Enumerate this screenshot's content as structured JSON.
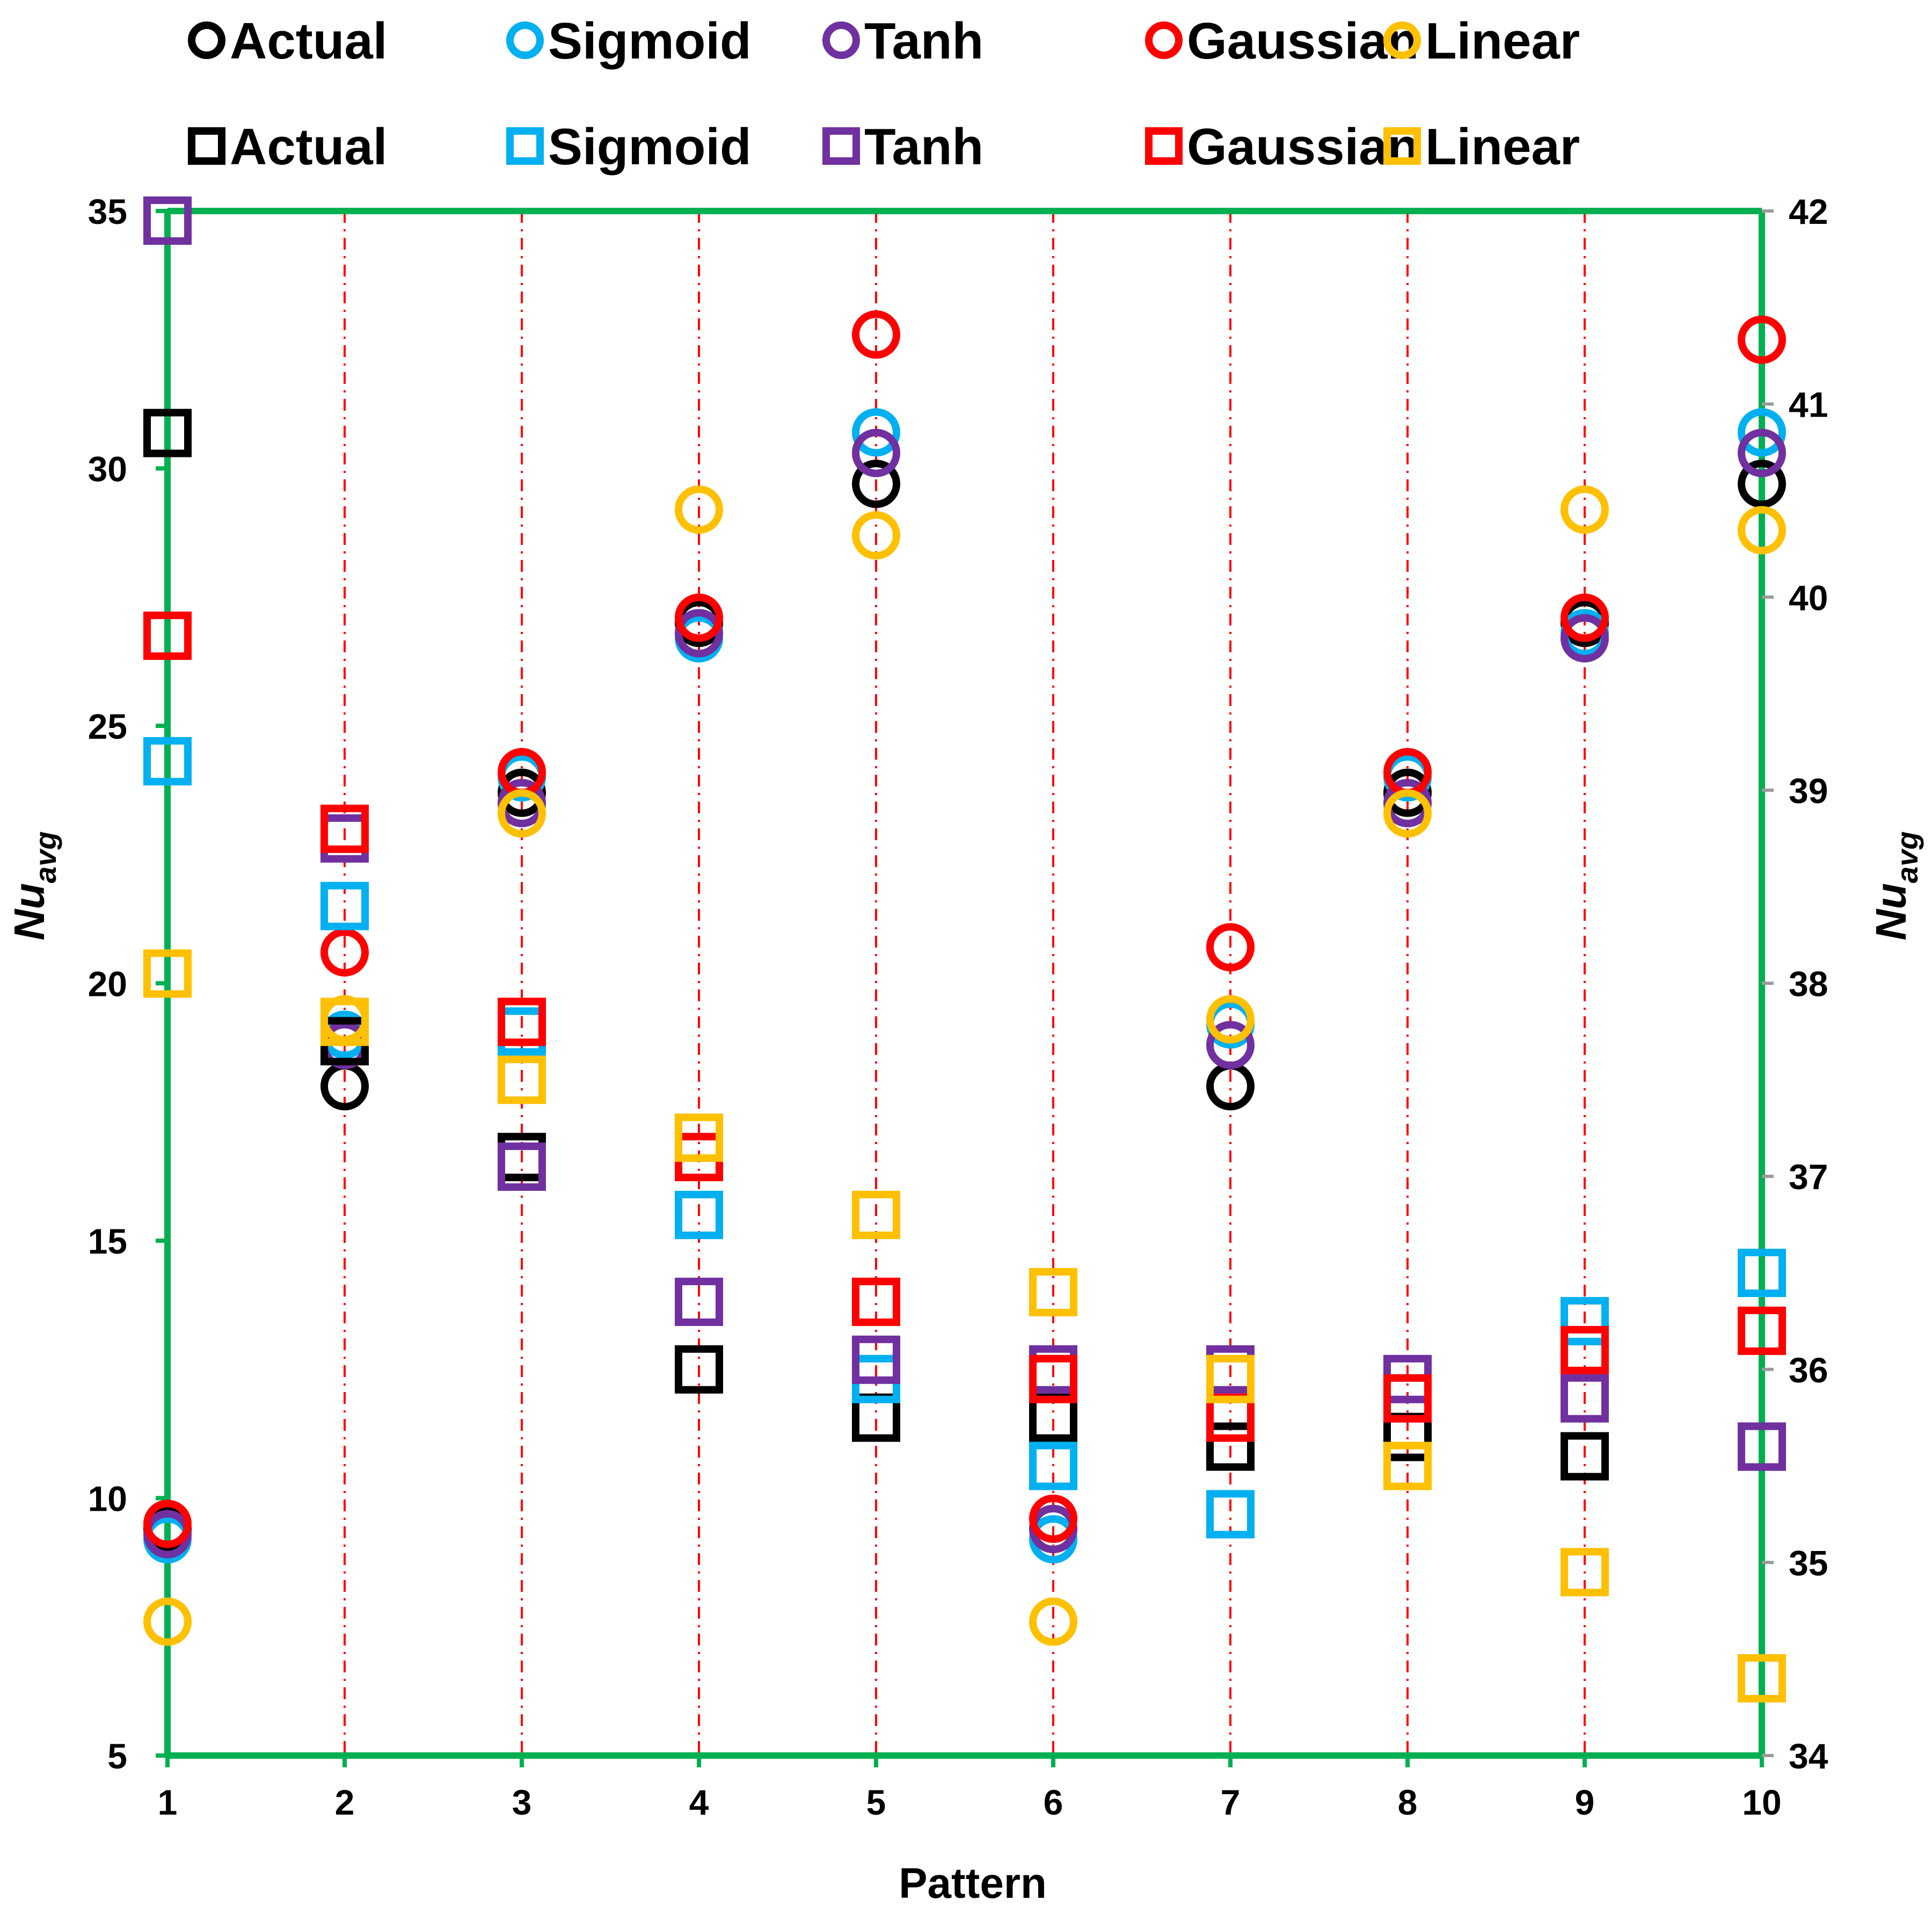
{
  "chart_data": {
    "type": "scatter",
    "title": "",
    "xlabel": "Pattern",
    "ylabel": "Nu",
    "ylabel_sub": "avg",
    "y2label": "Nu",
    "y2label_sub": "avg",
    "x": [
      1,
      2,
      3,
      4,
      5,
      6,
      7,
      8,
      9,
      10
    ],
    "xlim": [
      1,
      10
    ],
    "ylim": [
      5,
      35
    ],
    "y2lim": [
      34,
      42
    ],
    "xticks": [
      "1",
      "2",
      "3",
      "4",
      "5",
      "6",
      "7",
      "8",
      "9",
      "10"
    ],
    "yticks": [
      "5",
      "10",
      "15",
      "20",
      "25",
      "30",
      "35"
    ],
    "y2ticks": [
      "34",
      "35",
      "36",
      "37",
      "38",
      "39",
      "40",
      "41",
      "42"
    ],
    "grid": "vertical dash-dot lines at each pattern",
    "legend_position": "top",
    "colors": {
      "Actual": "#000000",
      "Sigmoid": "#00b0f0",
      "Tanh": "#7030a0",
      "Gaussian": "#ff0000",
      "Linear": "#ffc000",
      "frame": "#00b050",
      "grid": "#ff0000"
    },
    "series": [
      {
        "name": "Actual",
        "marker": "circle",
        "axis": "left",
        "values": [
          9.4,
          18.0,
          23.7,
          27.0,
          29.7,
          9.4,
          18.0,
          23.7,
          27.0,
          29.7
        ]
      },
      {
        "name": "Sigmoid",
        "marker": "circle",
        "axis": "left",
        "values": [
          9.2,
          19.0,
          24.0,
          26.7,
          30.7,
          9.2,
          19.2,
          24.0,
          26.8,
          30.7
        ]
      },
      {
        "name": "Tanh",
        "marker": "circle",
        "axis": "left",
        "values": [
          9.3,
          18.8,
          23.5,
          26.8,
          30.3,
          9.4,
          18.8,
          23.5,
          26.7,
          30.3
        ]
      },
      {
        "name": "Gaussian",
        "marker": "circle",
        "axis": "left",
        "values": [
          9.5,
          20.6,
          24.1,
          27.1,
          32.6,
          9.6,
          20.7,
          24.1,
          27.1,
          32.5
        ]
      },
      {
        "name": "Linear",
        "marker": "circle",
        "axis": "left",
        "values": [
          7.6,
          19.3,
          23.3,
          29.2,
          28.7,
          7.6,
          19.3,
          23.3,
          29.2,
          28.8
        ]
      },
      {
        "name": "Actual",
        "marker": "square",
        "axis": "right",
        "values": [
          40.85,
          37.7,
          37.1,
          36.0,
          35.75,
          35.75,
          35.6,
          35.65,
          35.55,
          35.6
        ]
      },
      {
        "name": "Sigmoid",
        "marker": "square",
        "axis": "right",
        "values": [
          39.15,
          38.4,
          37.75,
          36.8,
          35.95,
          35.5,
          35.25,
          35.85,
          36.25,
          36.5
        ]
      },
      {
        "name": "Tanh",
        "marker": "square",
        "axis": "right",
        "values": [
          41.95,
          38.75,
          37.05,
          36.35,
          36.05,
          36.0,
          36.0,
          35.95,
          35.85,
          35.6
        ]
      },
      {
        "name": "Gaussian",
        "marker": "square",
        "axis": "right",
        "values": [
          39.8,
          38.8,
          37.8,
          37.1,
          36.35,
          35.95,
          35.75,
          35.85,
          36.1,
          36.2
        ]
      },
      {
        "name": "Linear",
        "marker": "square",
        "axis": "right",
        "values": [
          38.05,
          37.8,
          37.5,
          37.2,
          36.8,
          36.4,
          35.95,
          35.5,
          34.95,
          34.4
        ]
      }
    ],
    "legend": {
      "row1": [
        "Actual",
        "Sigmoid",
        "Tanh",
        "Gaussian",
        "Linear"
      ],
      "row2": [
        "Actual",
        "Sigmoid",
        "Tanh",
        "Gaussian",
        "Linear"
      ]
    }
  }
}
